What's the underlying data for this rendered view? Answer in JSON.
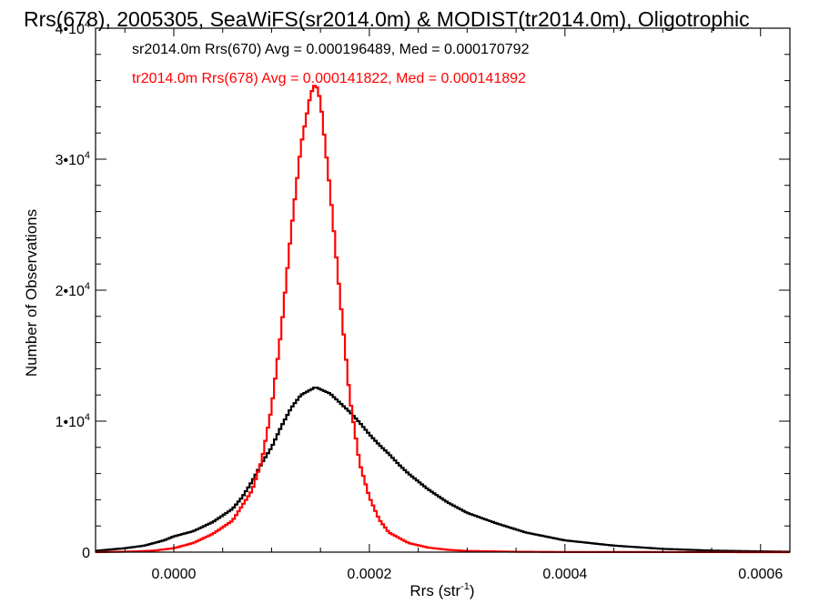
{
  "chart_data": {
    "type": "line",
    "title": "Rrs(678), 2005305, SeaWiFS(sr2014.0m) & MODIST(tr2014.0m), Oligotrophic",
    "xlabel": "Rrs (str",
    "xlabel_sup": "-1",
    "xlabel_close": ")",
    "ylabel": "Number of Observations",
    "xlim": [
      -8e-05,
      0.00063
    ],
    "ylim": [
      0,
      40000
    ],
    "grid": false,
    "x_ticks": [
      {
        "value": 0.0,
        "label": "0.0000"
      },
      {
        "value": 0.0002,
        "label": "0.0002"
      },
      {
        "value": 0.0004,
        "label": "0.0004"
      },
      {
        "value": 0.0006,
        "label": "0.0006"
      }
    ],
    "y_ticks": [
      {
        "value": 0,
        "base": "0",
        "sup": ""
      },
      {
        "value": 10000,
        "base": "1•10",
        "sup": "4"
      },
      {
        "value": 20000,
        "base": "2•10",
        "sup": "4"
      },
      {
        "value": 30000,
        "base": "3•10",
        "sup": "4"
      },
      {
        "value": 40000,
        "base": "4•10",
        "sup": "4"
      }
    ],
    "series": [
      {
        "name": "sr2014.0m Rrs(670)",
        "color": "#000000",
        "legend_text": "sr2014.0m Rrs(670) Avg = 0.000196489, Med = 0.000170792",
        "x": [
          -8e-05,
          -5e-05,
          -3e-05,
          -1e-05,
          0.0,
          2e-05,
          4e-05,
          6e-05,
          7e-05,
          8e-05,
          9e-05,
          0.0001,
          0.00011,
          0.00012,
          0.00013,
          0.000145,
          0.00016,
          0.00017,
          0.00018,
          0.00019,
          0.0002,
          0.00021,
          0.00022,
          0.00023,
          0.00024,
          0.00025,
          0.00026,
          0.00028,
          0.0003,
          0.00033,
          0.00036,
          0.0004,
          0.00045,
          0.0005,
          0.00055,
          0.0006,
          0.00063
        ],
        "y": [
          100,
          300,
          500,
          900,
          1200,
          1600,
          2300,
          3300,
          4200,
          5400,
          6800,
          8000,
          9600,
          11000,
          12000,
          12600,
          12100,
          11400,
          10700,
          9900,
          9000,
          8200,
          7500,
          6700,
          6000,
          5400,
          4800,
          3800,
          3000,
          2200,
          1500,
          900,
          500,
          250,
          120,
          60,
          30
        ]
      },
      {
        "name": "tr2014.0m Rrs(678)",
        "color": "#ff0000",
        "legend_text": "tr2014.0m Rrs(678) Avg = 0.000141822, Med = 0.000141892",
        "x": [
          -8e-05,
          -4e-05,
          -2e-05,
          0.0,
          2e-05,
          4e-05,
          6e-05,
          8e-05,
          9e-05,
          0.0001,
          0.00011,
          0.00012,
          0.00013,
          0.00014,
          0.000145,
          0.00015,
          0.00016,
          0.00017,
          0.00018,
          0.00019,
          0.0002,
          0.00021,
          0.00022,
          0.00024,
          0.00026,
          0.00028,
          0.0003,
          0.00035,
          0.0004,
          0.00063
        ],
        "y": [
          0,
          50,
          120,
          300,
          700,
          1400,
          2400,
          4700,
          7000,
          11000,
          17000,
          24500,
          31000,
          35000,
          35800,
          34500,
          27500,
          19500,
          11800,
          6800,
          4200,
          2500,
          1500,
          700,
          350,
          180,
          90,
          30,
          10,
          0
        ]
      }
    ]
  }
}
